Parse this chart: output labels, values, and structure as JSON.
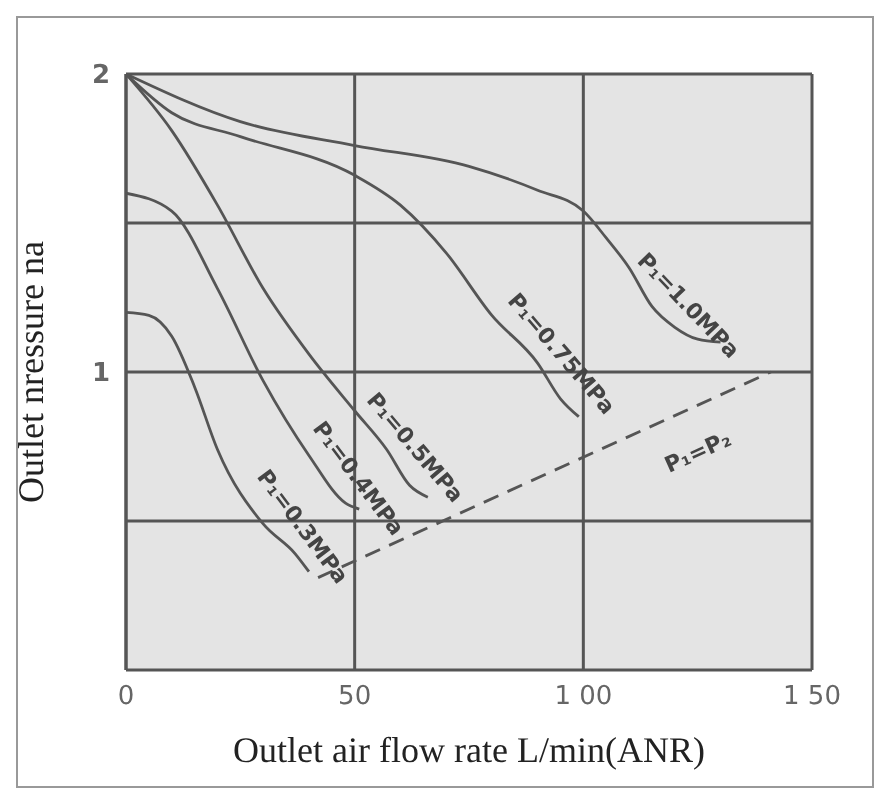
{
  "chart_data": {
    "type": "line",
    "xlabel": "Outlet air flow rate   L/min(ANR)",
    "ylabel": "Outlet nressure   na",
    "xlim": [
      0,
      150
    ],
    "xticks": [
      0,
      50,
      {
        "value": 100,
        "label": "1 00"
      },
      {
        "value": 150,
        "label": "1 50"
      }
    ],
    "ylim": [
      0,
      2
    ],
    "yticks": [
      {
        "value": 0.5,
        "label": null
      },
      1,
      {
        "value": 1.5,
        "label": null
      },
      2
    ],
    "grid": true,
    "legend": false,
    "marker": "none",
    "line_style": "solid",
    "series": [
      {
        "name": "P₁=1.0MPa",
        "color": "#555555",
        "x": [
          0,
          25,
          50,
          75,
          90,
          100,
          105,
          110,
          115,
          120,
          125,
          130
        ],
        "values": [
          2,
          1.84,
          1.76,
          1.69,
          1.61,
          1.54,
          1.45,
          1.35,
          1.22,
          1.15,
          1.11,
          1.1
        ]
      },
      {
        "name": "P₁=0.75MPa",
        "color": "#555555",
        "x": [
          0,
          10,
          25,
          50,
          60,
          70,
          80,
          90,
          95,
          99
        ],
        "values": [
          2,
          1.87,
          1.79,
          1.66,
          1.56,
          1.4,
          1.19,
          1.03,
          0.91,
          0.85
        ]
      },
      {
        "name": "P₁=0.5MPa",
        "color": "#555555",
        "x": [
          0,
          10,
          20,
          30,
          40,
          50,
          57,
          62,
          66
        ],
        "values": [
          2,
          1.81,
          1.56,
          1.28,
          1.06,
          0.87,
          0.74,
          0.62,
          0.58
        ]
      },
      {
        "name": "P₁=0.4MPa",
        "color": "#555555",
        "x": [
          0,
          10,
          20,
          30,
          40,
          48,
          51
        ],
        "values": [
          1.6,
          1.54,
          1.28,
          0.97,
          0.72,
          0.56,
          0.54
        ]
      },
      {
        "name": "P₁=0.3MPa",
        "color": "#555555",
        "x": [
          0,
          5,
          10,
          15,
          20,
          30,
          37,
          40
        ],
        "values": [
          1.2,
          1.19,
          1.12,
          0.95,
          0.74,
          0.49,
          0.39,
          0.33
        ]
      },
      {
        "name": "P₁=P₂",
        "color": "#555555",
        "line_style": "dashed",
        "x": [
          42,
          141
        ],
        "values": [
          0.31,
          1.0
        ]
      }
    ]
  }
}
